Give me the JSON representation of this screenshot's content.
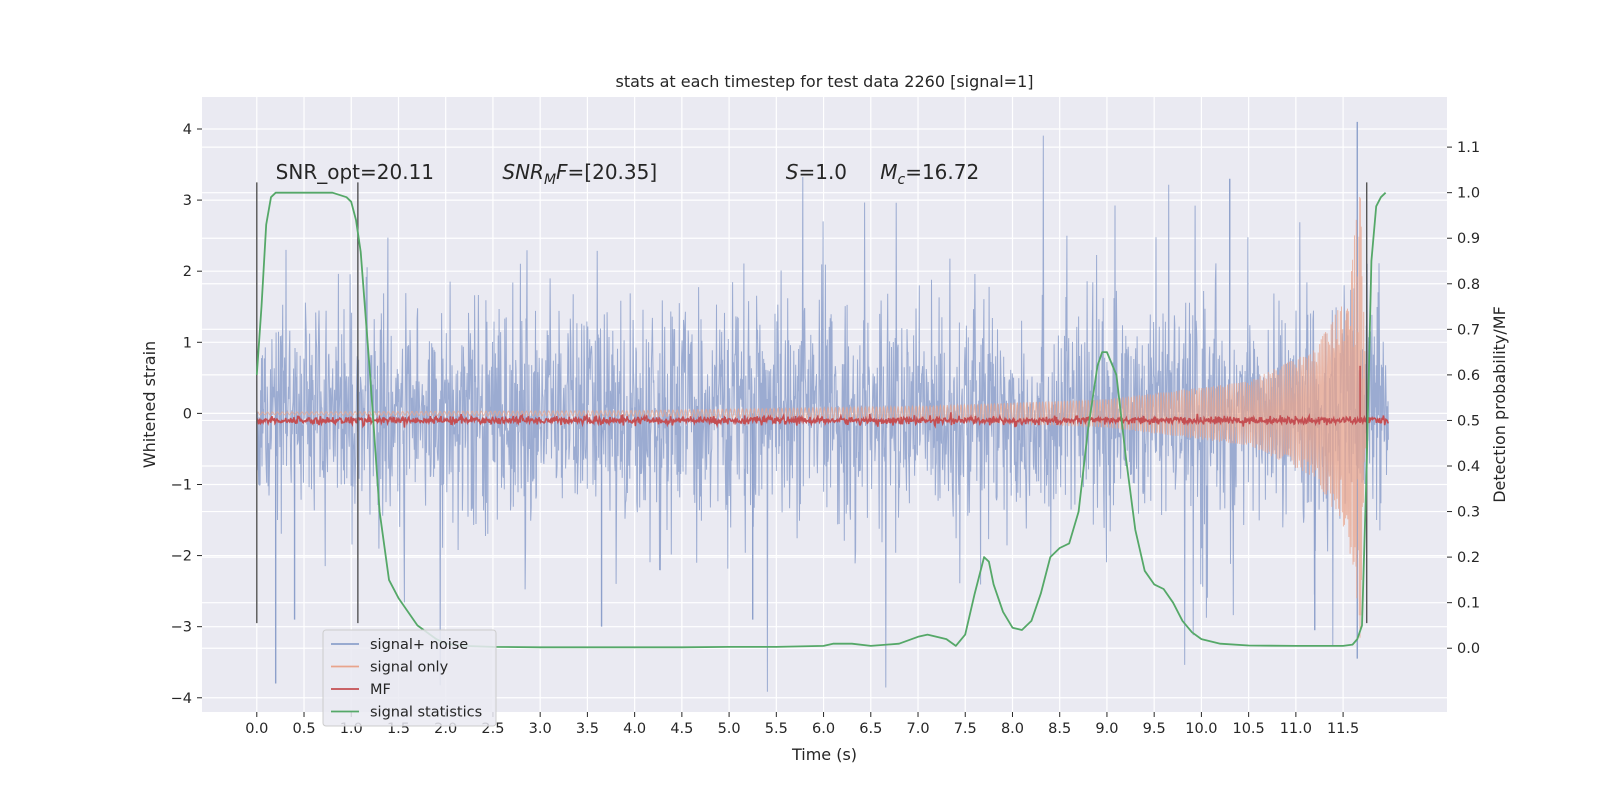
{
  "chart_data": {
    "type": "line",
    "title": "stats at each timestep for test data 2260 [signal=1]",
    "xlabel": "Time (s)",
    "ylabel": "Whitened strain",
    "y2label": "Detection probability/MF",
    "xlim": [
      -0.58,
      12.6
    ],
    "ylim": [
      -4.2,
      4.45
    ],
    "y2lim": [
      -0.14,
      1.21
    ],
    "xticks": [
      0.0,
      0.5,
      1.0,
      1.5,
      2.0,
      2.5,
      3.0,
      3.5,
      4.0,
      4.5,
      5.0,
      5.5,
      6.0,
      6.5,
      7.0,
      7.5,
      8.0,
      8.5,
      9.0,
      9.5,
      10.0,
      10.5,
      11.0,
      11.5
    ],
    "xtick_labels": [
      "0.0",
      "0.5",
      "1.0",
      "1.5",
      "2.0",
      "2.5",
      "3.0",
      "3.5",
      "4.0",
      "4.5",
      "5.0",
      "5.5",
      "6.0",
      "6.5",
      "7.0",
      "7.5",
      "8.0",
      "8.5",
      "9.0",
      "9.5",
      "10.0",
      "10.5",
      "11.0",
      "11.5"
    ],
    "yticks": [
      4,
      3,
      2,
      1,
      0,
      -1,
      -2,
      -3,
      -4
    ],
    "ytick_labels": [
      "4",
      "3",
      "2",
      "1",
      "0",
      "−1",
      "−2",
      "−3",
      "−4"
    ],
    "y2ticks": [
      1.1,
      1.0,
      0.9,
      0.8,
      0.7,
      0.6,
      0.5,
      0.4,
      0.3,
      0.2,
      0.1,
      0.0
    ],
    "y2tick_labels": [
      "1.1",
      "1.0",
      "0.9",
      "0.8",
      "0.7",
      "0.6",
      "0.5",
      "0.4",
      "0.3",
      "0.2",
      "0.1",
      "0.0"
    ],
    "grid": true,
    "background": "#eaeaf2",
    "legend_position": "lower-left",
    "annotations": [
      {
        "text": "SNR_opt=20.11",
        "x": 0.2,
        "y": 3.3
      },
      {
        "text": "SNR_MF=[20.35]",
        "x": 2.6,
        "y": 3.3
      },
      {
        "text": "S=1.0",
        "x": 5.6,
        "y": 3.3
      },
      {
        "text": "M_c=16.72",
        "x": 6.6,
        "y": 3.3
      }
    ],
    "vertical_markers": [
      {
        "x": 0.0,
        "y": [
          -2.95,
          3.25
        ]
      },
      {
        "x": 1.07,
        "y": [
          -2.95,
          3.25
        ]
      },
      {
        "x": 11.75,
        "y": [
          -2.95,
          3.25
        ]
      }
    ],
    "series": [
      {
        "name": "signal+ noise",
        "color": "#8da0cb",
        "axis": "left",
        "style": "dense-noise",
        "x_range": [
          0.0,
          11.98
        ],
        "envelope_std": 0.75,
        "notable_peaks": [
          {
            "x": 0.2,
            "y": -3.8
          },
          {
            "x": 0.4,
            "y": -2.9
          },
          {
            "x": 3.65,
            "y": -3.0
          },
          {
            "x": 5.25,
            "y": -2.9
          },
          {
            "x": 10.3,
            "y": 3.3
          },
          {
            "x": 11.2,
            "y": -3.05
          },
          {
            "x": 11.65,
            "y": 4.1
          },
          {
            "x": 11.65,
            "y": -3.45
          }
        ]
      },
      {
        "name": "signal only",
        "color": "#e8a48c",
        "axis": "left",
        "style": "chirp",
        "x_range": [
          0.0,
          11.75
        ],
        "amplitude": [
          [
            0.0,
            0.02
          ],
          [
            4.0,
            0.04
          ],
          [
            7.0,
            0.1
          ],
          [
            9.0,
            0.2
          ],
          [
            10.5,
            0.45
          ],
          [
            11.2,
            0.9
          ],
          [
            11.55,
            1.7
          ],
          [
            11.68,
            3.2
          ],
          [
            11.75,
            0.0
          ]
        ]
      },
      {
        "name": "MF",
        "color": "#c44e52",
        "axis": "right",
        "style": "noisy-band",
        "x_range": [
          0.0,
          11.98
        ],
        "level": 0.5,
        "spikes": [
          {
            "x": 11.68,
            "y": 0.62
          }
        ]
      },
      {
        "name": "signal statistics",
        "color": "#55a868",
        "axis": "right",
        "style": "line",
        "x": [
          0.0,
          0.05,
          0.1,
          0.15,
          0.2,
          0.3,
          0.5,
          0.8,
          0.95,
          1.0,
          1.05,
          1.1,
          1.2,
          1.3,
          1.4,
          1.5,
          1.7,
          1.9,
          2.0,
          2.2,
          2.5,
          3.0,
          3.5,
          4.0,
          4.5,
          5.0,
          5.5,
          6.0,
          6.1,
          6.3,
          6.5,
          6.8,
          7.0,
          7.1,
          7.3,
          7.4,
          7.5,
          7.6,
          7.7,
          7.75,
          7.8,
          7.9,
          8.0,
          8.1,
          8.2,
          8.3,
          8.4,
          8.5,
          8.6,
          8.7,
          8.8,
          8.9,
          8.95,
          9.0,
          9.1,
          9.2,
          9.3,
          9.4,
          9.5,
          9.6,
          9.7,
          9.8,
          9.9,
          10.0,
          10.2,
          10.5,
          11.0,
          11.3,
          11.5,
          11.6,
          11.65,
          11.7,
          11.75,
          11.8,
          11.85,
          11.9,
          11.95
        ],
        "y": [
          0.6,
          0.75,
          0.93,
          0.99,
          1.0,
          1.0,
          1.0,
          1.0,
          0.99,
          0.98,
          0.94,
          0.87,
          0.6,
          0.3,
          0.15,
          0.11,
          0.05,
          0.02,
          0.01,
          0.005,
          0.003,
          0.002,
          0.002,
          0.002,
          0.002,
          0.003,
          0.003,
          0.005,
          0.01,
          0.01,
          0.005,
          0.01,
          0.025,
          0.03,
          0.02,
          0.005,
          0.03,
          0.12,
          0.2,
          0.19,
          0.14,
          0.08,
          0.045,
          0.04,
          0.06,
          0.12,
          0.2,
          0.22,
          0.23,
          0.3,
          0.48,
          0.62,
          0.65,
          0.65,
          0.6,
          0.42,
          0.26,
          0.17,
          0.14,
          0.13,
          0.1,
          0.06,
          0.035,
          0.02,
          0.01,
          0.006,
          0.005,
          0.005,
          0.005,
          0.008,
          0.02,
          0.05,
          0.4,
          0.85,
          0.97,
          0.99,
          1.0
        ]
      }
    ]
  }
}
